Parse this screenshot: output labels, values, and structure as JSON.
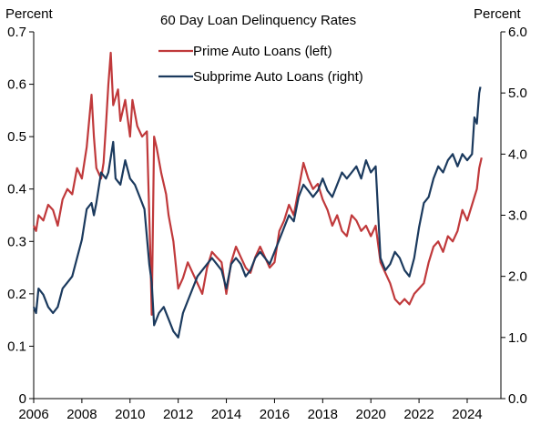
{
  "chart_data": {
    "type": "line",
    "title": "60 Day Loan Delinquency Rates",
    "left_axis_unit": "Percent",
    "right_axis_unit": "Percent",
    "xlim": [
      2006,
      2025.4
    ],
    "x_ticks": [
      "2006",
      "2008",
      "2010",
      "2012",
      "2014",
      "2016",
      "2018",
      "2020",
      "2022",
      "2024"
    ],
    "ylim_left": [
      0,
      0.7
    ],
    "y_ticks_left": [
      "0",
      "0.1",
      "0.2",
      "0.3",
      "0.4",
      "0.5",
      "0.6",
      "0.7"
    ],
    "ylim_right": [
      0,
      6.0
    ],
    "y_ticks_right": [
      "0.0",
      "1.0",
      "2.0",
      "3.0",
      "4.0",
      "5.0",
      "6.0"
    ],
    "grid": false,
    "legend_position": "top-center",
    "series": [
      {
        "name": "Prime Auto Loans (left)",
        "axis": "left",
        "color": "#c0393b",
        "points": [
          [
            2006.0,
            0.33
          ],
          [
            2006.1,
            0.32
          ],
          [
            2006.2,
            0.35
          ],
          [
            2006.4,
            0.34
          ],
          [
            2006.6,
            0.37
          ],
          [
            2006.8,
            0.36
          ],
          [
            2007.0,
            0.33
          ],
          [
            2007.2,
            0.38
          ],
          [
            2007.4,
            0.4
          ],
          [
            2007.6,
            0.39
          ],
          [
            2007.8,
            0.44
          ],
          [
            2008.0,
            0.42
          ],
          [
            2008.2,
            0.48
          ],
          [
            2008.4,
            0.58
          ],
          [
            2008.5,
            0.5
          ],
          [
            2008.6,
            0.44
          ],
          [
            2008.8,
            0.42
          ],
          [
            2008.9,
            0.45
          ],
          [
            2009.0,
            0.52
          ],
          [
            2009.1,
            0.6
          ],
          [
            2009.2,
            0.66
          ],
          [
            2009.3,
            0.56
          ],
          [
            2009.5,
            0.59
          ],
          [
            2009.6,
            0.53
          ],
          [
            2009.8,
            0.57
          ],
          [
            2010.0,
            0.5
          ],
          [
            2010.1,
            0.57
          ],
          [
            2010.3,
            0.52
          ],
          [
            2010.5,
            0.5
          ],
          [
            2010.7,
            0.51
          ],
          [
            2010.85,
            0.27
          ],
          [
            2010.9,
            0.16
          ],
          [
            2011.0,
            0.5
          ],
          [
            2011.1,
            0.48
          ],
          [
            2011.3,
            0.43
          ],
          [
            2011.5,
            0.39
          ],
          [
            2011.6,
            0.35
          ],
          [
            2011.8,
            0.3
          ],
          [
            2012.0,
            0.21
          ],
          [
            2012.2,
            0.23
          ],
          [
            2012.4,
            0.26
          ],
          [
            2012.6,
            0.24
          ],
          [
            2012.8,
            0.22
          ],
          [
            2013.0,
            0.2
          ],
          [
            2013.2,
            0.25
          ],
          [
            2013.4,
            0.28
          ],
          [
            2013.6,
            0.27
          ],
          [
            2013.8,
            0.26
          ],
          [
            2014.0,
            0.2
          ],
          [
            2014.2,
            0.26
          ],
          [
            2014.4,
            0.29
          ],
          [
            2014.6,
            0.27
          ],
          [
            2014.8,
            0.25
          ],
          [
            2015.0,
            0.24
          ],
          [
            2015.2,
            0.27
          ],
          [
            2015.4,
            0.29
          ],
          [
            2015.6,
            0.27
          ],
          [
            2015.8,
            0.25
          ],
          [
            2016.0,
            0.26
          ],
          [
            2016.2,
            0.32
          ],
          [
            2016.4,
            0.34
          ],
          [
            2016.6,
            0.37
          ],
          [
            2016.8,
            0.35
          ],
          [
            2017.0,
            0.4
          ],
          [
            2017.2,
            0.45
          ],
          [
            2017.4,
            0.42
          ],
          [
            2017.6,
            0.4
          ],
          [
            2017.8,
            0.41
          ],
          [
            2018.0,
            0.38
          ],
          [
            2018.2,
            0.36
          ],
          [
            2018.4,
            0.33
          ],
          [
            2018.6,
            0.35
          ],
          [
            2018.8,
            0.32
          ],
          [
            2019.0,
            0.31
          ],
          [
            2019.2,
            0.35
          ],
          [
            2019.4,
            0.34
          ],
          [
            2019.6,
            0.32
          ],
          [
            2019.8,
            0.33
          ],
          [
            2020.0,
            0.31
          ],
          [
            2020.2,
            0.33
          ],
          [
            2020.4,
            0.26
          ],
          [
            2020.6,
            0.24
          ],
          [
            2020.8,
            0.22
          ],
          [
            2021.0,
            0.19
          ],
          [
            2021.2,
            0.18
          ],
          [
            2021.4,
            0.19
          ],
          [
            2021.6,
            0.18
          ],
          [
            2021.8,
            0.2
          ],
          [
            2022.0,
            0.21
          ],
          [
            2022.2,
            0.22
          ],
          [
            2022.4,
            0.26
          ],
          [
            2022.6,
            0.29
          ],
          [
            2022.8,
            0.3
          ],
          [
            2023.0,
            0.28
          ],
          [
            2023.2,
            0.31
          ],
          [
            2023.4,
            0.3
          ],
          [
            2023.6,
            0.32
          ],
          [
            2023.8,
            0.36
          ],
          [
            2024.0,
            0.34
          ],
          [
            2024.2,
            0.37
          ],
          [
            2024.4,
            0.4
          ],
          [
            2024.5,
            0.44
          ],
          [
            2024.6,
            0.46
          ]
        ]
      },
      {
        "name": "Subprime Auto Loans (right)",
        "axis": "right",
        "color": "#1b3a5e",
        "points": [
          [
            2006.0,
            1.5
          ],
          [
            2006.1,
            1.4
          ],
          [
            2006.2,
            1.8
          ],
          [
            2006.4,
            1.7
          ],
          [
            2006.6,
            1.5
          ],
          [
            2006.8,
            1.4
          ],
          [
            2007.0,
            1.5
          ],
          [
            2007.2,
            1.8
          ],
          [
            2007.4,
            1.9
          ],
          [
            2007.6,
            2.0
          ],
          [
            2007.8,
            2.3
          ],
          [
            2008.0,
            2.6
          ],
          [
            2008.2,
            3.1
          ],
          [
            2008.4,
            3.2
          ],
          [
            2008.5,
            3.0
          ],
          [
            2008.6,
            3.2
          ],
          [
            2008.8,
            3.7
          ],
          [
            2009.0,
            3.6
          ],
          [
            2009.1,
            3.7
          ],
          [
            2009.3,
            4.2
          ],
          [
            2009.4,
            3.6
          ],
          [
            2009.6,
            3.5
          ],
          [
            2009.8,
            3.9
          ],
          [
            2010.0,
            3.6
          ],
          [
            2010.2,
            3.5
          ],
          [
            2010.4,
            3.3
          ],
          [
            2010.6,
            3.1
          ],
          [
            2010.8,
            2.2
          ],
          [
            2010.9,
            1.9
          ],
          [
            2011.0,
            1.2
          ],
          [
            2011.2,
            1.4
          ],
          [
            2011.4,
            1.5
          ],
          [
            2011.6,
            1.3
          ],
          [
            2011.8,
            1.1
          ],
          [
            2012.0,
            1.0
          ],
          [
            2012.2,
            1.4
          ],
          [
            2012.4,
            1.6
          ],
          [
            2012.6,
            1.8
          ],
          [
            2012.8,
            2.0
          ],
          [
            2013.0,
            2.1
          ],
          [
            2013.2,
            2.2
          ],
          [
            2013.4,
            2.3
          ],
          [
            2013.6,
            2.2
          ],
          [
            2013.8,
            2.1
          ],
          [
            2014.0,
            1.8
          ],
          [
            2014.2,
            2.2
          ],
          [
            2014.4,
            2.3
          ],
          [
            2014.6,
            2.2
          ],
          [
            2014.8,
            2.0
          ],
          [
            2015.0,
            2.1
          ],
          [
            2015.2,
            2.3
          ],
          [
            2015.4,
            2.4
          ],
          [
            2015.6,
            2.3
          ],
          [
            2015.8,
            2.2
          ],
          [
            2016.0,
            2.4
          ],
          [
            2016.2,
            2.6
          ],
          [
            2016.4,
            2.8
          ],
          [
            2016.6,
            3.0
          ],
          [
            2016.8,
            2.9
          ],
          [
            2017.0,
            3.3
          ],
          [
            2017.2,
            3.5
          ],
          [
            2017.4,
            3.4
          ],
          [
            2017.6,
            3.3
          ],
          [
            2017.8,
            3.4
          ],
          [
            2018.0,
            3.6
          ],
          [
            2018.2,
            3.4
          ],
          [
            2018.4,
            3.3
          ],
          [
            2018.6,
            3.5
          ],
          [
            2018.8,
            3.7
          ],
          [
            2019.0,
            3.6
          ],
          [
            2019.2,
            3.7
          ],
          [
            2019.4,
            3.8
          ],
          [
            2019.6,
            3.6
          ],
          [
            2019.8,
            3.9
          ],
          [
            2020.0,
            3.7
          ],
          [
            2020.2,
            3.8
          ],
          [
            2020.4,
            2.3
          ],
          [
            2020.6,
            2.1
          ],
          [
            2020.8,
            2.2
          ],
          [
            2021.0,
            2.4
          ],
          [
            2021.2,
            2.3
          ],
          [
            2021.4,
            2.1
          ],
          [
            2021.6,
            2.0
          ],
          [
            2021.8,
            2.3
          ],
          [
            2022.0,
            2.8
          ],
          [
            2022.2,
            3.2
          ],
          [
            2022.4,
            3.3
          ],
          [
            2022.6,
            3.6
          ],
          [
            2022.8,
            3.8
          ],
          [
            2023.0,
            3.7
          ],
          [
            2023.2,
            3.9
          ],
          [
            2023.4,
            4.0
          ],
          [
            2023.6,
            3.8
          ],
          [
            2023.8,
            4.0
          ],
          [
            2024.0,
            3.9
          ],
          [
            2024.2,
            4.0
          ],
          [
            2024.3,
            4.6
          ],
          [
            2024.4,
            4.5
          ],
          [
            2024.5,
            5.0
          ],
          [
            2024.55,
            5.1
          ]
        ]
      }
    ]
  }
}
